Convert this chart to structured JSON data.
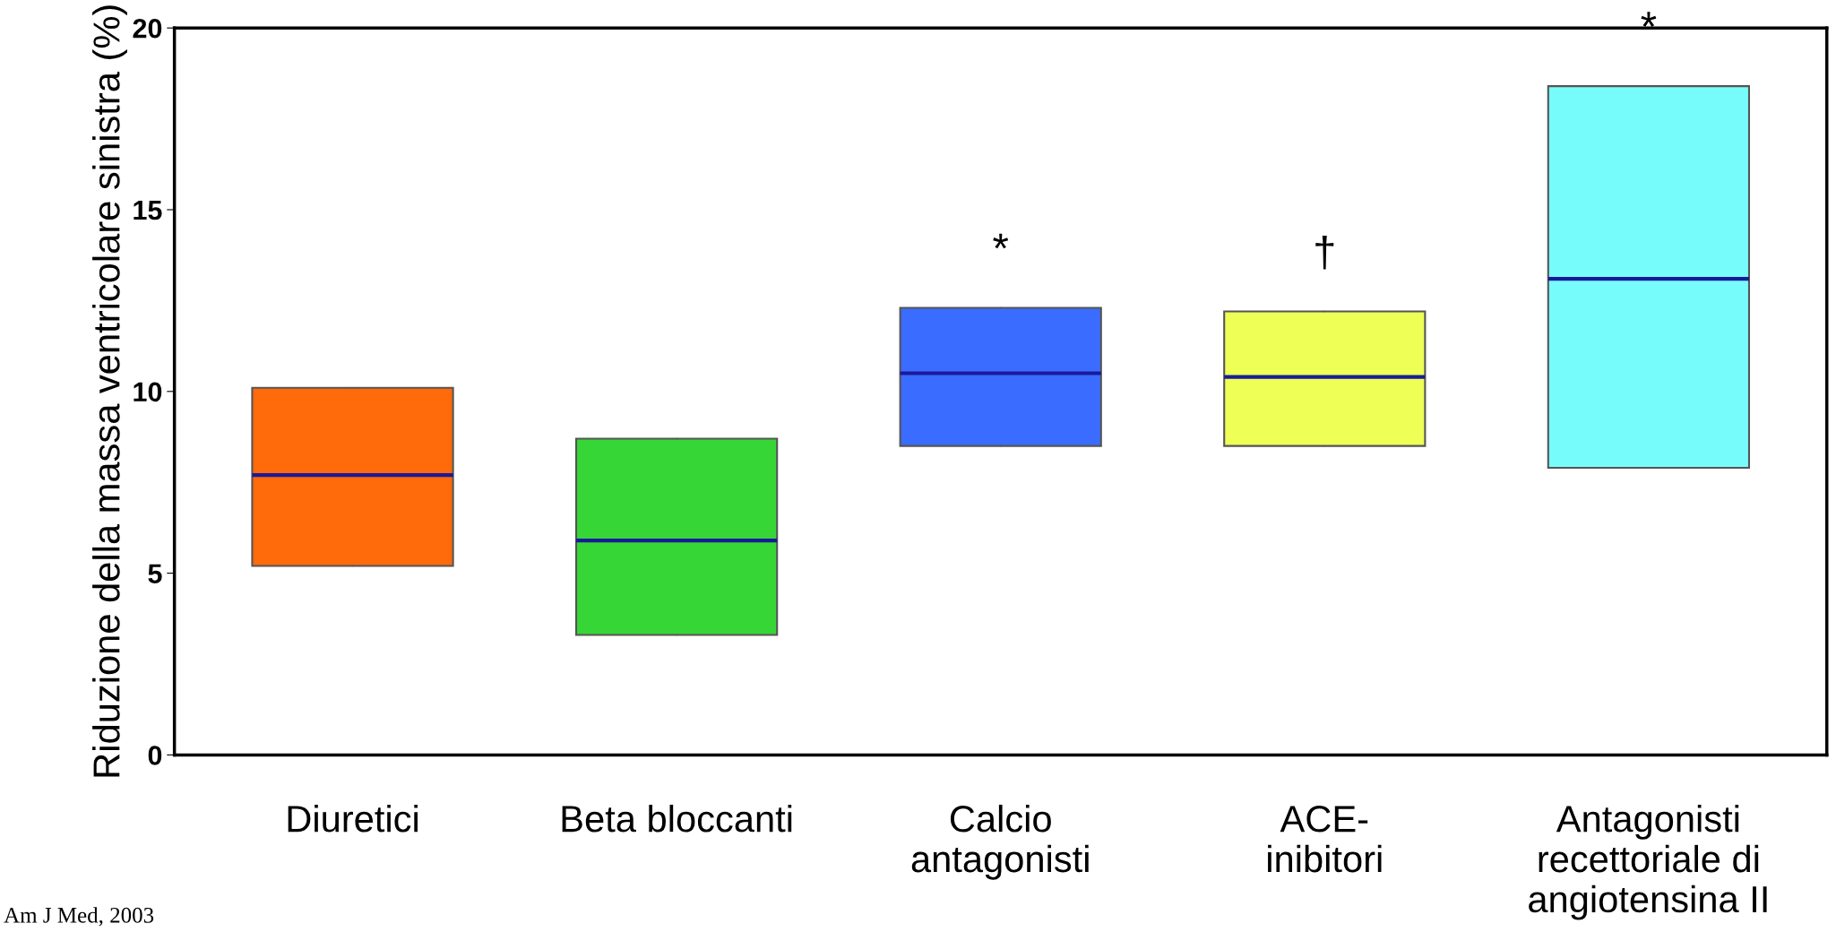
{
  "chart_data": {
    "type": "box",
    "ylabel": "Riduzione della massa ventricolare sinistra (%)",
    "categories": [
      "Diuretici",
      "Beta bloccanti",
      "Calcio\nantagonisti",
      "ACE-\ninibitori",
      "Antagonisti\nrecettoriale di\nangiotensina II"
    ],
    "boxes": [
      {
        "low": 5.2,
        "q1": 5.2,
        "median": 7.7,
        "q3": 10.1,
        "high": 10.1
      },
      {
        "low": 3.3,
        "q1": 3.3,
        "median": 5.9,
        "q3": 8.7,
        "high": 8.7
      },
      {
        "low": 8.5,
        "q1": 8.5,
        "median": 10.5,
        "q3": 12.3,
        "high": 12.3
      },
      {
        "low": 8.5,
        "q1": 8.5,
        "median": 10.4,
        "q3": 12.2,
        "high": 12.2
      },
      {
        "low": 7.9,
        "q1": 7.9,
        "median": 13.1,
        "q3": 18.4,
        "high": 18.4
      }
    ],
    "colors": [
      "#ff6a0a",
      "#36d636",
      "#3a6cff",
      "#eeff55",
      "#77fcfc"
    ],
    "ylim": [
      0,
      20
    ],
    "yticks": [
      0,
      5,
      10,
      15,
      20
    ],
    "grid": false,
    "annotations": [
      "*",
      "†",
      "*",
      "Am J Med, 2003"
    ]
  }
}
